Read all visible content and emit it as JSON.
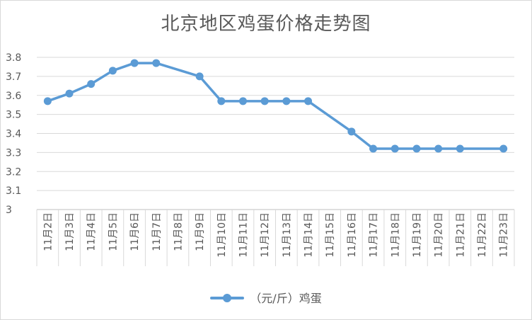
{
  "chart_data": {
    "type": "line",
    "title": "北京地区鸡蛋价格走势图",
    "categories": [
      "11月2日",
      "11月3日",
      "11月4日",
      "11月5日",
      "11月6日",
      "11月7日",
      "11月8日",
      "11月9日",
      "11月10日",
      "11月11日",
      "11月12日",
      "11月13日",
      "11月14日",
      "11月15日",
      "11月16日",
      "11月17日",
      "11月18日",
      "11月19日",
      "11月20日",
      "11月21日",
      "11月22日",
      "11月23日"
    ],
    "series": [
      {
        "name": "（元/斤）鸡蛋",
        "color": "#5b9bd5",
        "values": [
          3.57,
          3.61,
          3.66,
          3.73,
          3.77,
          3.77,
          null,
          3.7,
          3.57,
          3.57,
          3.57,
          3.57,
          3.57,
          null,
          3.41,
          3.32,
          3.32,
          3.32,
          3.32,
          3.32,
          null,
          3.32
        ]
      }
    ],
    "ylim": [
      3,
      3.8
    ],
    "yticks": [
      "3",
      "3.1",
      "3.2",
      "3.3",
      "3.4",
      "3.5",
      "3.6",
      "3.7",
      "3.8"
    ],
    "grid": true,
    "legend": "bottom"
  }
}
